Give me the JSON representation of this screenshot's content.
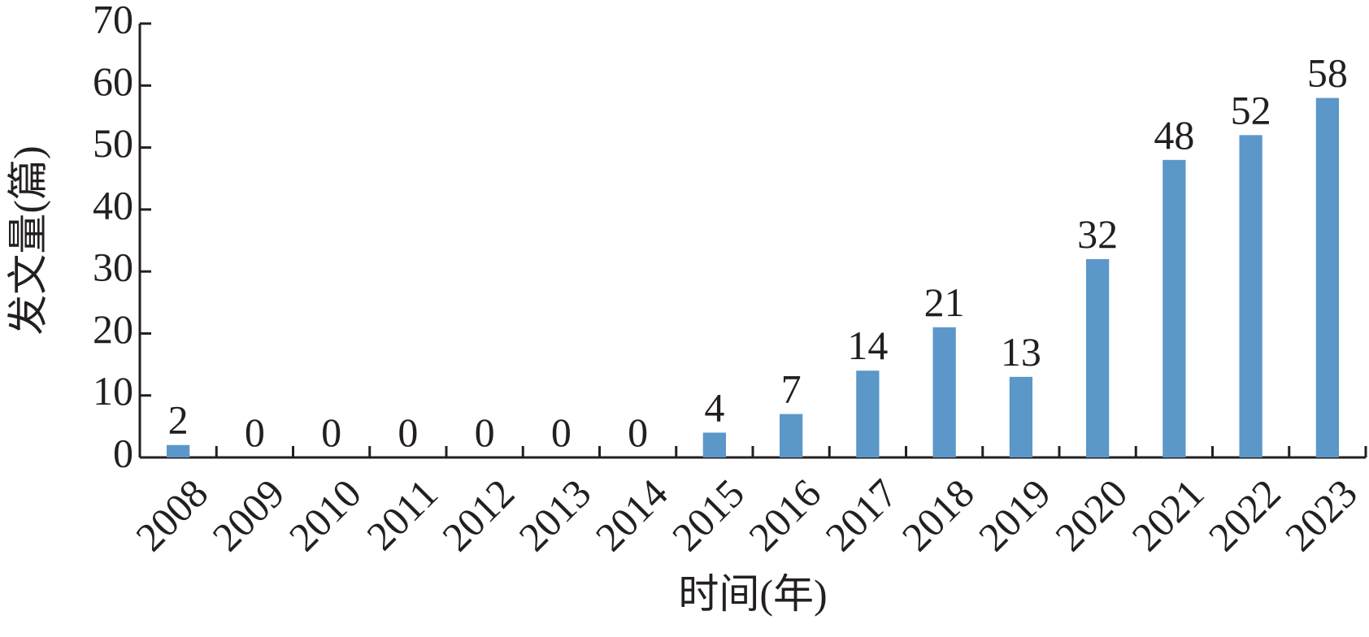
{
  "chart_data": {
    "type": "bar",
    "x_label": "时间(年)",
    "y_label": "发文量(篇)",
    "categories": [
      "2008",
      "2009",
      "2010",
      "2011",
      "2012",
      "2013",
      "2014",
      "2015",
      "2016",
      "2017",
      "2018",
      "2019",
      "2020",
      "2021",
      "2022",
      "2023"
    ],
    "values": [
      2,
      0,
      0,
      0,
      0,
      0,
      0,
      4,
      7,
      14,
      21,
      13,
      32,
      48,
      52,
      58
    ],
    "color": "#5b97c9",
    "ylim": [
      0,
      70
    ],
    "yticks": [
      0,
      10,
      20,
      30,
      40,
      50,
      60,
      70
    ],
    "grid": false
  }
}
